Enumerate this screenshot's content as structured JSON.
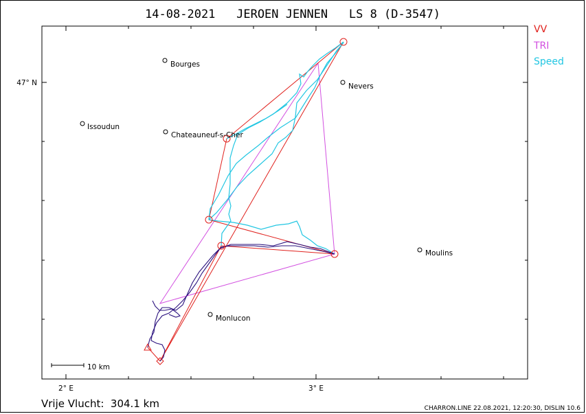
{
  "title": "14-08-2021   JEROEN JENNEN   LS 8 (D-3547)",
  "legend": [
    {
      "label": "VV",
      "color": "#e0201c"
    },
    {
      "label": "TRI",
      "color": "#d24fe0"
    },
    {
      "label": "Speed",
      "color": "#21c6e2"
    }
  ],
  "axes": {
    "lat_label": "47° N",
    "lon_labels": [
      "2° E",
      "3° E"
    ]
  },
  "cities": [
    {
      "name": "Bourges"
    },
    {
      "name": "Nevers"
    },
    {
      "name": "Issoudun"
    },
    {
      "name": "Chateauneuf-s-Cher"
    },
    {
      "name": "Moulins"
    },
    {
      "name": "Monlucon"
    }
  ],
  "scale_label": "10 km",
  "footer": {
    "distance": "Vrije Vlucht:  304.1 km",
    "credit": "CHARRON.LINE 22.08.2021, 12:20:30, DISLIN 10.6"
  },
  "colors": {
    "vv": "#e0201c",
    "tri": "#d24fe0",
    "speed": "#21c6e2",
    "track": "#2a117e"
  }
}
